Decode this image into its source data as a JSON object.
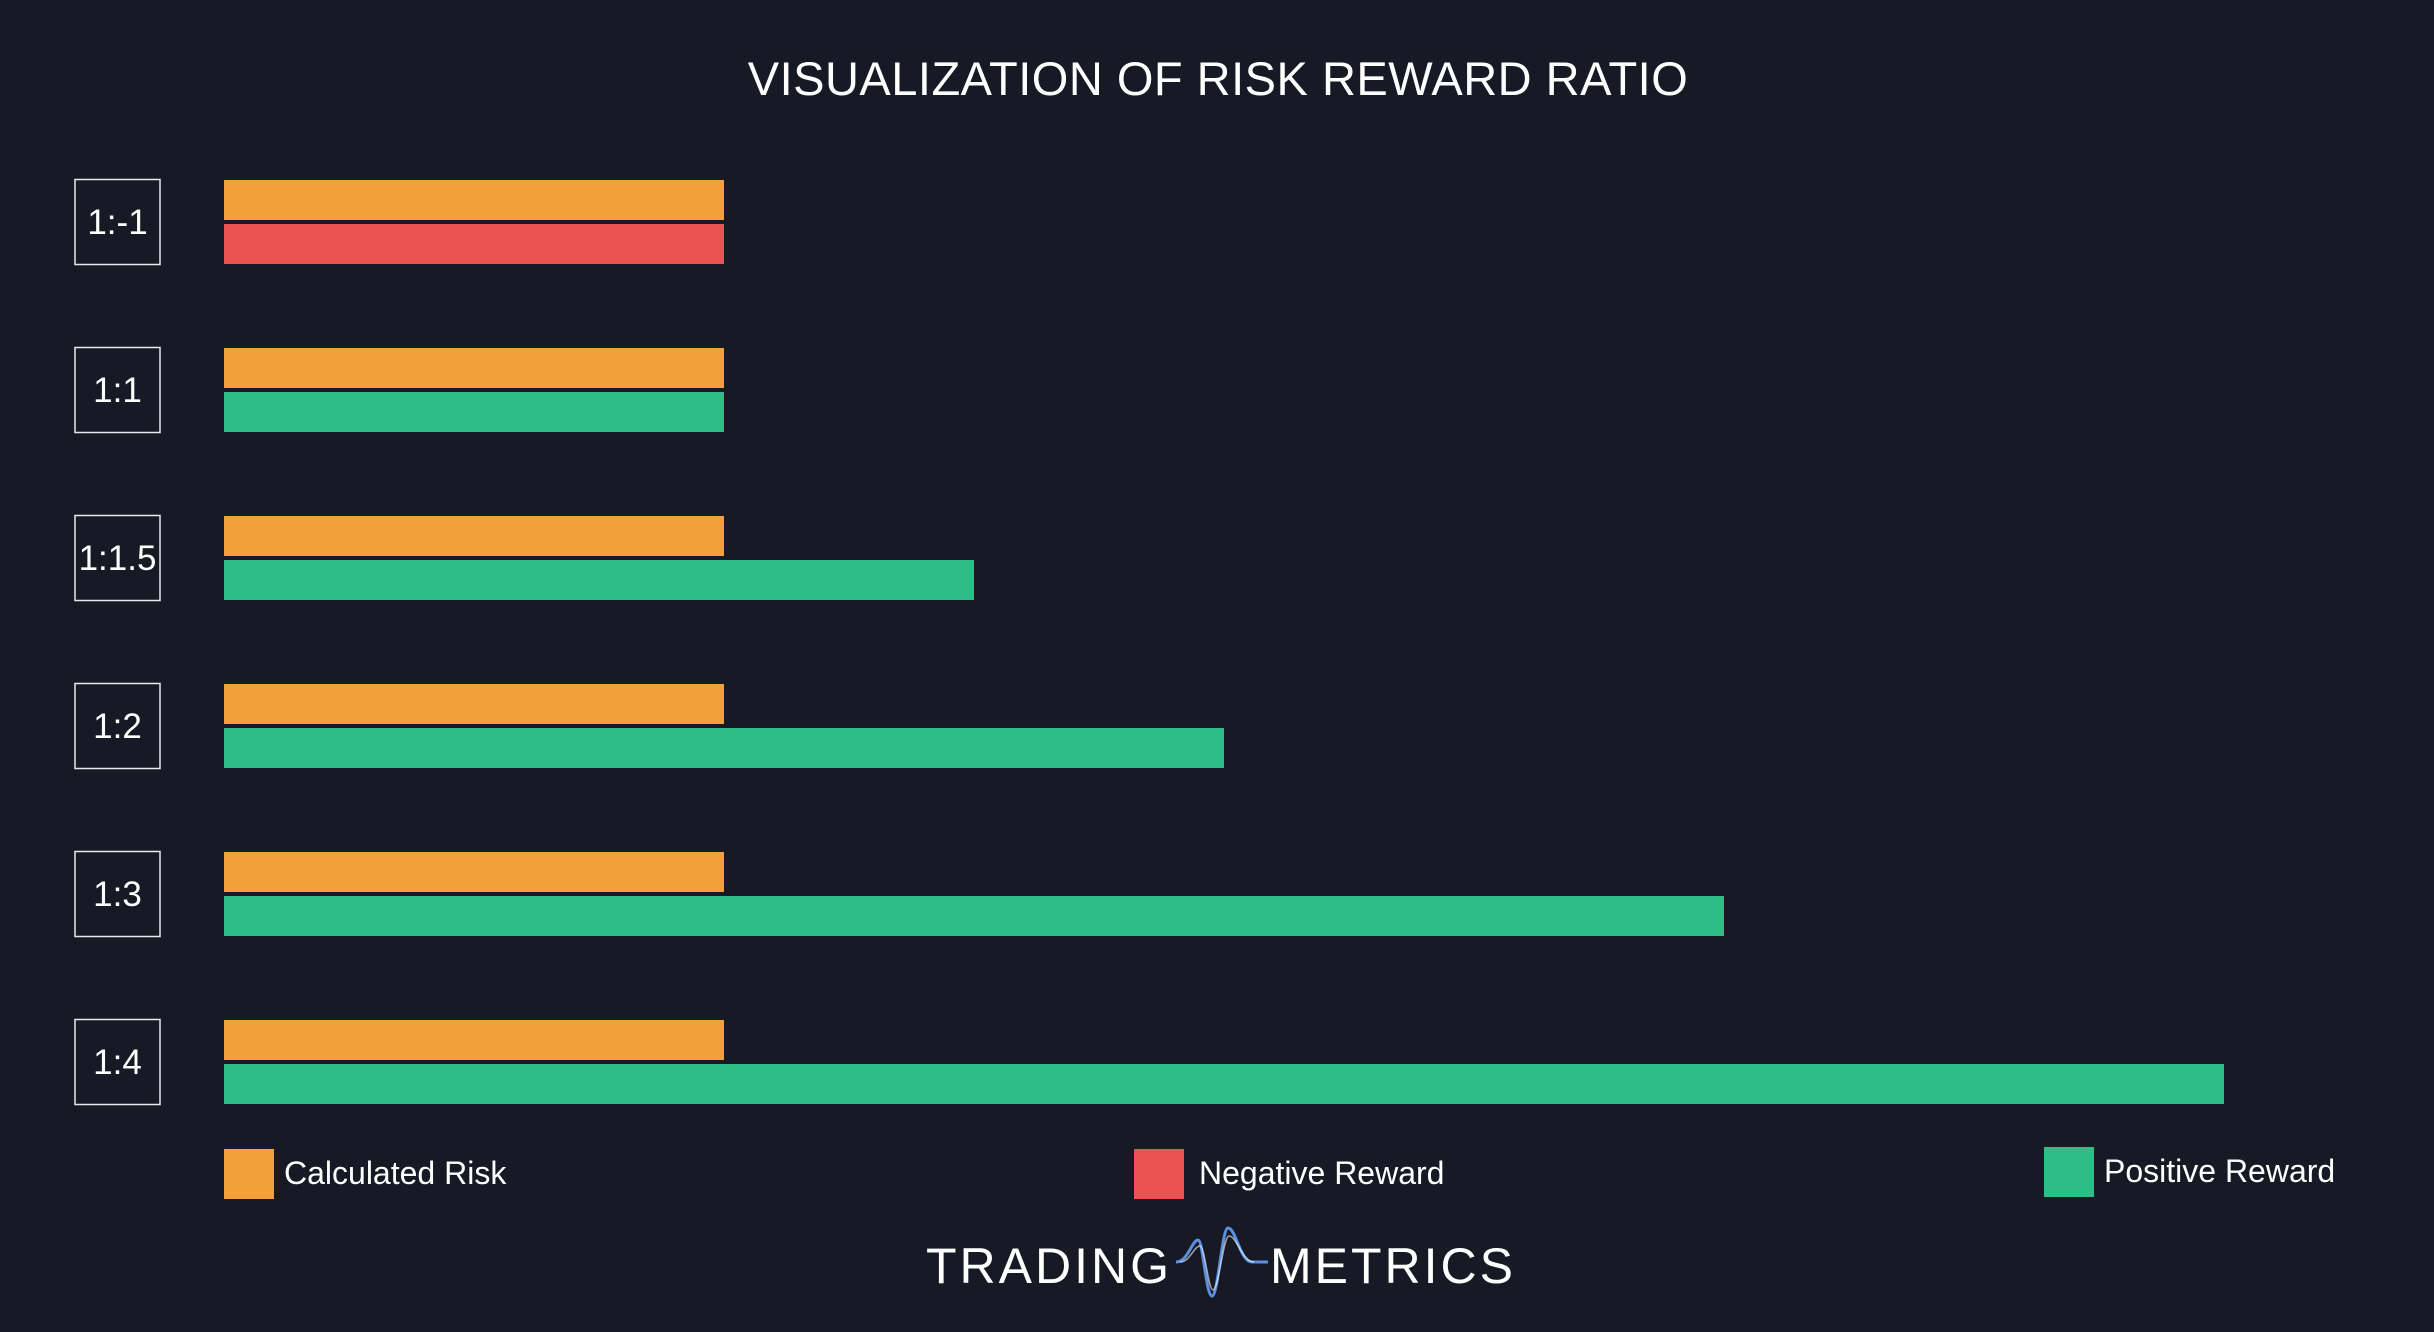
{
  "chart_data": {
    "type": "bar",
    "orientation": "horizontal",
    "title": "VISUALIZATION OF RISK REWARD RATIO",
    "categories": [
      "1:-1",
      "1:1",
      "1:1.5",
      "1:2",
      "1:3",
      "1:4"
    ],
    "series": [
      {
        "name": "Calculated Risk",
        "values": [
          1,
          1,
          1,
          1,
          1,
          1
        ]
      },
      {
        "name": "Reward",
        "values": [
          1,
          1,
          1.5,
          2,
          3,
          4
        ]
      }
    ],
    "reward_kind": [
      "negative",
      "positive",
      "positive",
      "positive",
      "positive",
      "positive"
    ],
    "xlim": [
      0,
      4
    ],
    "grid": false,
    "legend": {
      "position": "bottom",
      "items": [
        {
          "label": "Calculated Risk",
          "color": "#f2a03a"
        },
        {
          "label": "Negative Reward",
          "color": "#eb5251"
        },
        {
          "label": "Positive Reward",
          "color": "#2ebd85"
        }
      ]
    }
  },
  "colors": {
    "background": "#171a25",
    "risk": "#f2a03a",
    "negative": "#eb5251",
    "positive": "#2ebd85",
    "box_stroke": "#e6e8ee",
    "logo_wave": "#5b8fe0"
  },
  "brand": {
    "left": "TRADING",
    "right": "METRICS"
  }
}
